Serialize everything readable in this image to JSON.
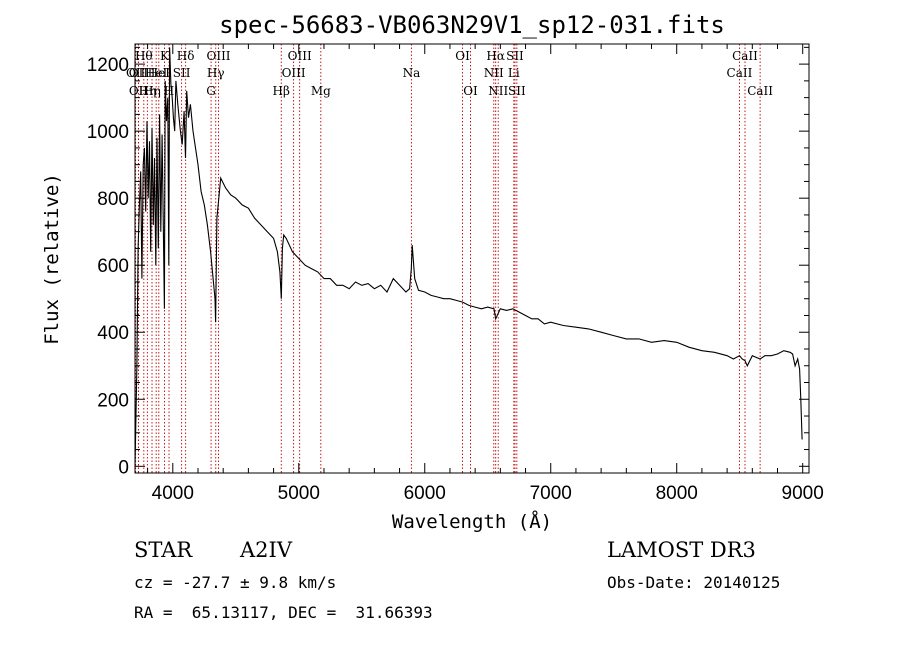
{
  "chart_data": {
    "type": "line",
    "title": "spec-56683-VB063N29V1_sp12-031.fits",
    "xlabel": "Wavelength (Å)",
    "ylabel": "Flux (relative)",
    "xlim": [
      3700,
      9050
    ],
    "ylim": [
      -20,
      1260
    ],
    "xticks": [
      4000,
      5000,
      6000,
      7000,
      8000,
      9000
    ],
    "yticks": [
      0,
      200,
      400,
      600,
      800,
      1000,
      1200
    ],
    "line_color": "#000000",
    "marker_color": "#c00000",
    "spectrum": {
      "x": [
        3700,
        3715,
        3725,
        3735,
        3745,
        3755,
        3765,
        3775,
        3785,
        3795,
        3805,
        3815,
        3825,
        3835,
        3845,
        3855,
        3865,
        3875,
        3885,
        3895,
        3905,
        3915,
        3925,
        3933,
        3940,
        3950,
        3960,
        3968,
        3975,
        3985,
        3995,
        4005,
        4015,
        4025,
        4040,
        4060,
        4075,
        4090,
        4101,
        4110,
        4125,
        4140,
        4160,
        4180,
        4200,
        4225,
        4250,
        4275,
        4300,
        4320,
        4335,
        4340,
        4350,
        4380,
        4420,
        4460,
        4500,
        4550,
        4600,
        4650,
        4700,
        4750,
        4800,
        4830,
        4850,
        4861,
        4870,
        4880,
        4900,
        4950,
        5000,
        5050,
        5100,
        5150,
        5200,
        5250,
        5300,
        5350,
        5400,
        5450,
        5500,
        5550,
        5600,
        5650,
        5700,
        5750,
        5800,
        5850,
        5880,
        5893,
        5900,
        5920,
        5950,
        6000,
        6050,
        6100,
        6150,
        6200,
        6250,
        6300,
        6350,
        6400,
        6450,
        6500,
        6550,
        6563,
        6600,
        6650,
        6700,
        6750,
        6800,
        6850,
        6900,
        6950,
        7000,
        7100,
        7200,
        7300,
        7400,
        7500,
        7600,
        7700,
        7800,
        7900,
        8000,
        8100,
        8200,
        8300,
        8400,
        8450,
        8498,
        8520,
        8542,
        8560,
        8600,
        8662,
        8700,
        8750,
        8800,
        8850,
        8900,
        8920,
        8940,
        8960,
        8975,
        8985,
        8995
      ],
      "y": [
        0,
        300,
        650,
        780,
        880,
        560,
        900,
        950,
        760,
        1030,
        800,
        970,
        640,
        1010,
        720,
        920,
        600,
        980,
        650,
        1050,
        700,
        990,
        720,
        470,
        1150,
        1030,
        1100,
        600,
        1250,
        1140,
        1100,
        1040,
        1000,
        1150,
        1080,
        1000,
        960,
        1060,
        920,
        1120,
        1040,
        1080,
        1000,
        950,
        900,
        820,
        780,
        720,
        640,
        560,
        500,
        430,
        740,
        860,
        830,
        810,
        800,
        780,
        770,
        740,
        720,
        700,
        680,
        640,
        580,
        500,
        650,
        690,
        680,
        640,
        620,
        600,
        590,
        580,
        560,
        560,
        540,
        540,
        530,
        550,
        540,
        545,
        530,
        540,
        520,
        560,
        540,
        520,
        530,
        590,
        660,
        560,
        525,
        520,
        510,
        505,
        500,
        500,
        495,
        490,
        480,
        475,
        470,
        475,
        470,
        440,
        470,
        465,
        470,
        460,
        450,
        440,
        440,
        425,
        430,
        420,
        415,
        410,
        400,
        390,
        380,
        380,
        370,
        375,
        370,
        355,
        345,
        340,
        330,
        320,
        330,
        320,
        315,
        300,
        330,
        320,
        330,
        330,
        335,
        345,
        340,
        335,
        300,
        320,
        290,
        200,
        80
      ]
    },
    "lines": [
      {
        "x": 3705,
        "label": "OII",
        "row": 1
      },
      {
        "x": 3727,
        "label": "OII",
        "row": 1
      },
      {
        "x": 3728,
        "label": "OII",
        "row": 2
      },
      {
        "x": 3770,
        "label": "Hθ",
        "row": 0
      },
      {
        "x": 3798,
        "label": "Hη",
        "row": 2
      },
      {
        "x": 3835,
        "label": "Hη",
        "row": 2
      },
      {
        "x": 3868,
        "label": "HeI",
        "row": 1
      },
      {
        "x": 3889,
        "label": "HeI",
        "row": 1
      },
      {
        "x": 3934,
        "label": "K",
        "row": 0
      },
      {
        "x": 3970,
        "label": "H",
        "row": 2
      },
      {
        "x": 4070,
        "label": "SII",
        "row": 1
      },
      {
        "x": 4102,
        "label": "Hδ",
        "row": 0
      },
      {
        "x": 4304,
        "label": "G",
        "row": 2
      },
      {
        "x": 4341,
        "label": "Hγ",
        "row": 1
      },
      {
        "x": 4363,
        "label": "OIII",
        "row": 0
      },
      {
        "x": 4861,
        "label": "Hβ",
        "row": 2
      },
      {
        "x": 4959,
        "label": "OIII",
        "row": 1
      },
      {
        "x": 5007,
        "label": "OIII",
        "row": 0
      },
      {
        "x": 5175,
        "label": "Mg",
        "row": 2
      },
      {
        "x": 5894,
        "label": "Na",
        "row": 1
      },
      {
        "x": 6300,
        "label": "OI",
        "row": 0
      },
      {
        "x": 6363,
        "label": "OI",
        "row": 2
      },
      {
        "x": 6548,
        "label": "NII",
        "row": 1
      },
      {
        "x": 6563,
        "label": "Hα",
        "row": 0
      },
      {
        "x": 6583,
        "label": "NII",
        "row": 2
      },
      {
        "x": 6707,
        "label": "Li",
        "row": 1
      },
      {
        "x": 6716,
        "label": "SII",
        "row": 0
      },
      {
        "x": 6731,
        "label": "SII",
        "row": 2
      },
      {
        "x": 8498,
        "label": "CaII",
        "row": 1
      },
      {
        "x": 8542,
        "label": "CaII",
        "row": 0
      },
      {
        "x": 8662,
        "label": "CaII",
        "row": 2
      }
    ]
  },
  "info": {
    "obj_class": "STAR",
    "subclass": "A2IV",
    "survey": "LAMOST DR3",
    "cz": "cz = -27.7 ± 9.8 km/s",
    "obs_date": "Obs-Date: 20140125",
    "coords": "RA =  65.13117, DEC =  31.66393"
  }
}
